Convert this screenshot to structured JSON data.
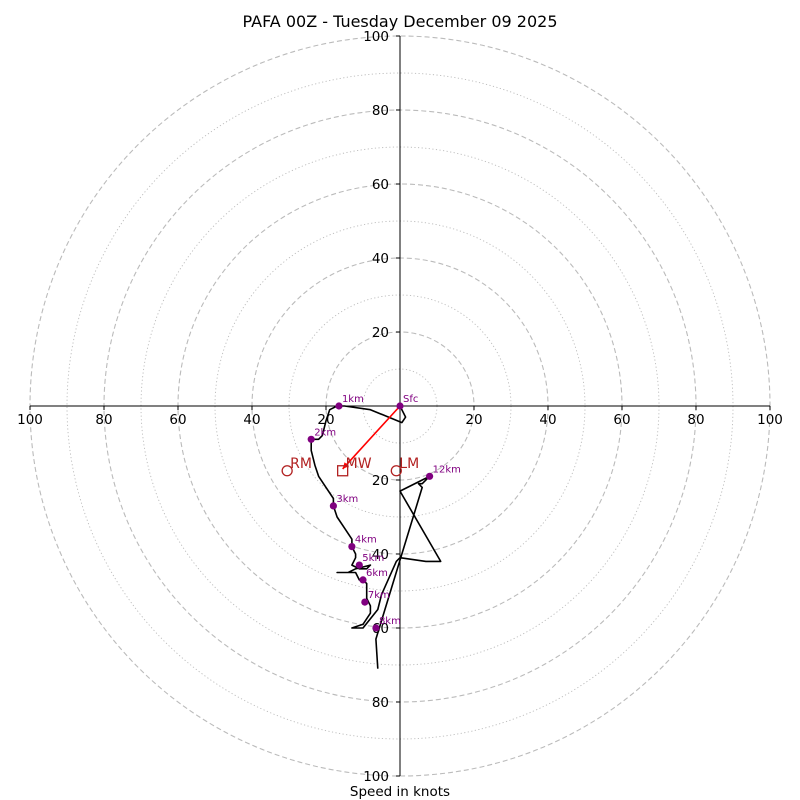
{
  "chart_data": {
    "type": "hodograph",
    "title": "PAFA 00Z - Tuesday December 09 2025",
    "xlabel": "Speed in knots",
    "max_speed": 100,
    "dashed_rings": [
      20,
      40,
      60,
      80,
      100
    ],
    "dotted_rings": [
      10,
      30,
      50,
      70,
      90
    ],
    "tick_values": [
      20,
      40,
      60,
      80,
      100
    ],
    "tick_labels": [
      "20",
      "40",
      "60",
      "80",
      "100"
    ],
    "colors": {
      "trace": "#000000",
      "height_marker": "#800080",
      "motion": "#b22222",
      "shear_vector": "#ff0000",
      "grid": "#bbbbbb"
    },
    "trace": [
      [
        0,
        0
      ],
      [
        1.5,
        -3
      ],
      [
        0.5,
        -4.5
      ],
      [
        -8,
        -1
      ],
      [
        -15,
        0
      ],
      [
        -17,
        0
      ],
      [
        -19,
        -1
      ],
      [
        -20,
        -4
      ],
      [
        -21,
        -8
      ],
      [
        -22,
        -9
      ],
      [
        -24,
        -9
      ],
      [
        -24,
        -12
      ],
      [
        -23,
        -16
      ],
      [
        -22,
        -19
      ],
      [
        -20,
        -22
      ],
      [
        -18,
        -25
      ],
      [
        -18,
        -27
      ],
      [
        -17,
        -30
      ],
      [
        -15,
        -33
      ],
      [
        -13,
        -36
      ],
      [
        -13,
        -38
      ],
      [
        -12,
        -40
      ],
      [
        -12,
        -41
      ],
      [
        -13,
        -43
      ],
      [
        -11,
        -44
      ],
      [
        -9,
        -44
      ],
      [
        -8,
        -43
      ],
      [
        -10,
        -43.5
      ],
      [
        -12,
        -44
      ],
      [
        -14,
        -45
      ],
      [
        -17,
        -45
      ],
      [
        -12,
        -45
      ],
      [
        -11,
        -47
      ],
      [
        -10,
        -47
      ],
      [
        -9,
        -48
      ],
      [
        -9,
        -49
      ],
      [
        -9,
        -52
      ],
      [
        -8,
        -54
      ],
      [
        -8,
        -56
      ],
      [
        -10,
        -59
      ],
      [
        -13,
        -60
      ],
      [
        -10,
        -60
      ],
      [
        -6,
        -55
      ],
      [
        -5,
        -51
      ],
      [
        -1,
        -42
      ],
      [
        0,
        -41
      ],
      [
        7,
        -42
      ],
      [
        11,
        -42
      ],
      [
        0,
        -23
      ],
      [
        6,
        -20
      ],
      [
        8,
        -19
      ],
      [
        6,
        -21
      ],
      [
        5,
        -21
      ],
      [
        6,
        -22
      ],
      [
        -6.5,
        -63
      ],
      [
        -6,
        -71
      ]
    ],
    "height_markers": [
      {
        "label": "Sfc",
        "u": 0,
        "v": 0
      },
      {
        "label": "1km",
        "u": -16.5,
        "v": 0
      },
      {
        "label": "2km",
        "u": -24,
        "v": -9
      },
      {
        "label": "3km",
        "u": -18,
        "v": -27
      },
      {
        "label": "4km",
        "u": -13,
        "v": -38
      },
      {
        "label": "5km",
        "u": -11,
        "v": -43
      },
      {
        "label": "6km",
        "u": -10,
        "v": -47
      },
      {
        "label": "7km",
        "u": -9.5,
        "v": -53
      },
      {
        "label": "8km",
        "u": -6.5,
        "v": -60
      },
      {
        "label": "12km",
        "u": 8,
        "v": -19
      }
    ],
    "storm_motion": [
      {
        "label": "RM",
        "u": -30.5,
        "v": -17.5,
        "marker": "circle"
      },
      {
        "label": "MW",
        "u": -15.5,
        "v": -17.5,
        "marker": "square"
      },
      {
        "label": "LM",
        "u": -1,
        "v": -17.5,
        "marker": "circle"
      }
    ],
    "shear_vector": {
      "from": [
        0,
        0
      ],
      "to": [
        -15.5,
        -17
      ]
    }
  }
}
